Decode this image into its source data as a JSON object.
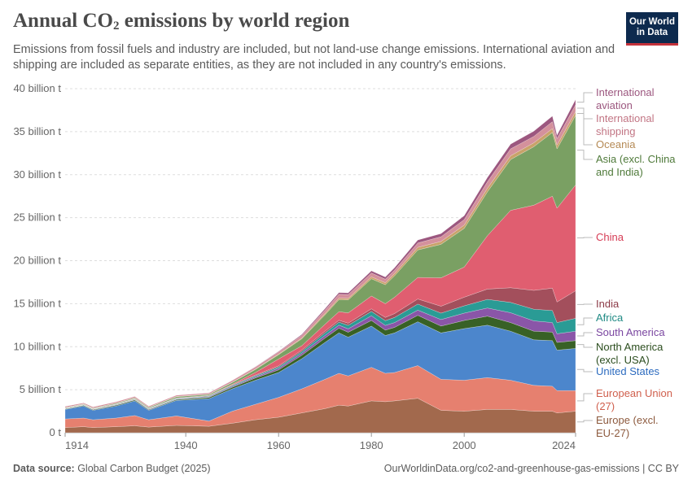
{
  "header": {
    "title_main": "Annual CO",
    "title_sub": "2",
    "title_rest": " emissions by world region",
    "subtitle": "Emissions from fossil fuels and industry are included, but not land-use change emissions. International aviation and shipping are included as separate entities, as they are not included in any country's emissions.",
    "logo_line1": "Our World",
    "logo_line2": "in Data"
  },
  "footer": {
    "source_label": "Data source:",
    "source_value": " Global Carbon Budget (2025)",
    "url_license": "OurWorldinData.org/co2-and-greenhouse-gas-emissions | CC BY"
  },
  "colors": {
    "grid": "#dddddd",
    "axis_text": "#666666"
  },
  "chart_data": {
    "type": "area",
    "stacked": true,
    "title": "Annual CO₂ emissions by world region",
    "ylim": [
      0,
      40
    ],
    "y_ticks": [
      0,
      5,
      10,
      15,
      20,
      25,
      30,
      35,
      40
    ],
    "y_tick_labels": [
      "0 t",
      "5 billion t",
      "10 billion t",
      "15 billion t",
      "20 billion t",
      "25 billion t",
      "30 billion t",
      "35 billion t",
      "40 billion t"
    ],
    "xlim": [
      1914,
      2024
    ],
    "x_ticks": [
      1914,
      1940,
      1960,
      1980,
      2000,
      2024
    ],
    "x": [
      1914,
      1918,
      1920,
      1925,
      1929,
      1932,
      1938,
      1945,
      1950,
      1955,
      1960,
      1965,
      1970,
      1973,
      1975,
      1980,
      1983,
      1985,
      1990,
      1995,
      2000,
      2005,
      2010,
      2015,
      2019,
      2020,
      2024
    ],
    "legend_position": "right",
    "series": [
      {
        "name": "Europe (excl. EU-27)",
        "color": "#a2694d",
        "values": [
          0.6,
          0.7,
          0.6,
          0.7,
          0.8,
          0.65,
          0.85,
          0.75,
          1.1,
          1.5,
          1.8,
          2.3,
          2.8,
          3.2,
          3.1,
          3.7,
          3.6,
          3.7,
          4.0,
          2.6,
          2.5,
          2.7,
          2.7,
          2.5,
          2.5,
          2.3,
          2.5
        ]
      },
      {
        "name": "European Union (27)",
        "color": "#e6806f",
        "values": [
          1.0,
          1.0,
          0.9,
          1.0,
          1.2,
          0.85,
          1.1,
          0.6,
          1.4,
          1.8,
          2.3,
          2.8,
          3.4,
          3.7,
          3.5,
          3.9,
          3.3,
          3.3,
          3.8,
          3.6,
          3.6,
          3.7,
          3.4,
          3.0,
          2.9,
          2.6,
          2.4
        ]
      },
      {
        "name": "United States",
        "color": "#4c86cc",
        "values": [
          1.1,
          1.4,
          1.1,
          1.4,
          1.7,
          1.1,
          1.8,
          2.6,
          2.6,
          2.8,
          2.9,
          3.5,
          4.3,
          4.7,
          4.5,
          4.8,
          4.4,
          4.6,
          5.1,
          5.4,
          6.0,
          6.1,
          5.7,
          5.3,
          5.3,
          4.7,
          4.9
        ]
      },
      {
        "name": "North America (excl. USA)",
        "color": "#386126",
        "values": [
          0.07,
          0.08,
          0.08,
          0.1,
          0.1,
          0.08,
          0.1,
          0.14,
          0.18,
          0.25,
          0.3,
          0.4,
          0.5,
          0.55,
          0.58,
          0.65,
          0.62,
          0.65,
          0.75,
          0.8,
          0.95,
          1.05,
          1.0,
          1.0,
          1.0,
          0.9,
          0.9
        ]
      },
      {
        "name": "South America",
        "color": "#8a56a8",
        "values": [
          0.02,
          0.03,
          0.03,
          0.04,
          0.05,
          0.05,
          0.06,
          0.08,
          0.1,
          0.15,
          0.2,
          0.25,
          0.3,
          0.35,
          0.4,
          0.55,
          0.55,
          0.55,
          0.6,
          0.75,
          0.85,
          0.95,
          1.15,
          1.2,
          1.1,
          1.0,
          1.1
        ]
      },
      {
        "name": "Africa",
        "color": "#2a9b95",
        "values": [
          0.02,
          0.03,
          0.03,
          0.04,
          0.05,
          0.05,
          0.06,
          0.08,
          0.1,
          0.12,
          0.15,
          0.2,
          0.3,
          0.35,
          0.4,
          0.5,
          0.55,
          0.6,
          0.7,
          0.75,
          0.85,
          1.0,
          1.2,
          1.35,
          1.4,
          1.3,
          1.5
        ]
      },
      {
        "name": "India",
        "color": "#a34f5c",
        "values": [
          0.02,
          0.02,
          0.02,
          0.03,
          0.03,
          0.03,
          0.04,
          0.05,
          0.07,
          0.08,
          0.12,
          0.16,
          0.2,
          0.22,
          0.25,
          0.3,
          0.38,
          0.45,
          0.6,
          0.8,
          1.0,
          1.2,
          1.7,
          2.2,
          2.6,
          2.4,
          3.2
        ]
      },
      {
        "name": "China",
        "color": "#e05e70",
        "values": [
          0.02,
          0.02,
          0.02,
          0.03,
          0.03,
          0.03,
          0.03,
          0.03,
          0.08,
          0.3,
          0.8,
          0.5,
          0.8,
          1.0,
          1.2,
          1.5,
          1.6,
          1.9,
          2.5,
          3.3,
          3.5,
          6.2,
          9.0,
          9.9,
          10.7,
          10.9,
          12.3
        ]
      },
      {
        "name": "Asia (excl. China and India)",
        "color": "#7aa063",
        "values": [
          0.06,
          0.07,
          0.07,
          0.09,
          0.1,
          0.1,
          0.15,
          0.12,
          0.2,
          0.35,
          0.5,
          0.8,
          1.1,
          1.4,
          1.5,
          2.0,
          2.2,
          2.5,
          3.2,
          3.9,
          4.5,
          5.1,
          5.9,
          6.8,
          7.4,
          6.9,
          8.1
        ]
      },
      {
        "name": "Oceania",
        "color": "#c9a26a",
        "values": [
          0.01,
          0.01,
          0.01,
          0.02,
          0.02,
          0.02,
          0.03,
          0.03,
          0.04,
          0.05,
          0.07,
          0.1,
          0.15,
          0.17,
          0.18,
          0.22,
          0.24,
          0.26,
          0.3,
          0.33,
          0.38,
          0.42,
          0.45,
          0.45,
          0.46,
          0.44,
          0.43
        ]
      },
      {
        "name": "International shipping",
        "color": "#d4919c",
        "values": [
          0.15,
          0.12,
          0.15,
          0.15,
          0.15,
          0.13,
          0.15,
          0.15,
          0.2,
          0.23,
          0.25,
          0.3,
          0.4,
          0.45,
          0.45,
          0.45,
          0.4,
          0.4,
          0.5,
          0.55,
          0.65,
          0.75,
          0.8,
          0.75,
          0.8,
          0.75,
          0.8
        ]
      },
      {
        "name": "International aviation",
        "color": "#9c577f",
        "values": [
          0.0,
          0.0,
          0.0,
          0.0,
          0.0,
          0.0,
          0.0,
          0.01,
          0.02,
          0.04,
          0.07,
          0.11,
          0.17,
          0.2,
          0.2,
          0.25,
          0.26,
          0.28,
          0.35,
          0.37,
          0.45,
          0.5,
          0.55,
          0.6,
          0.65,
          0.4,
          0.6
        ]
      }
    ],
    "legend_labels": [
      {
        "lines": [
          "International",
          "aviation"
        ],
        "color": "#9c577f",
        "series": "International aviation"
      },
      {
        "lines": [
          "International",
          "shipping"
        ],
        "color": "#c27584",
        "series": "International shipping"
      },
      {
        "lines": [
          "Oceania"
        ],
        "color": "#b58a55",
        "series": "Oceania"
      },
      {
        "lines": [
          "Asia (excl. China",
          "and India)"
        ],
        "color": "#4f7a3a",
        "series": "Asia (excl. China and India)"
      },
      {
        "lines": [
          "China"
        ],
        "color": "#d63c55",
        "series": "China"
      },
      {
        "lines": [
          "India"
        ],
        "color": "#8c3a47",
        "series": "India"
      },
      {
        "lines": [
          "Africa"
        ],
        "color": "#1f8a84",
        "series": "Africa"
      },
      {
        "lines": [
          "South America"
        ],
        "color": "#7a46a0",
        "series": "South America"
      },
      {
        "lines": [
          "North America",
          "(excl. USA)"
        ],
        "color": "#2b4d1e",
        "series": "North America (excl. USA)"
      },
      {
        "lines": [
          "United States"
        ],
        "color": "#2c6bbf",
        "series": "United States"
      },
      {
        "lines": [
          "European Union",
          "(27)"
        ],
        "color": "#d0604e",
        "series": "European Union (27)"
      },
      {
        "lines": [
          "Europe (excl.",
          "EU-27)"
        ],
        "color": "#8d5a3e",
        "series": "Europe (excl. EU-27)"
      }
    ]
  }
}
